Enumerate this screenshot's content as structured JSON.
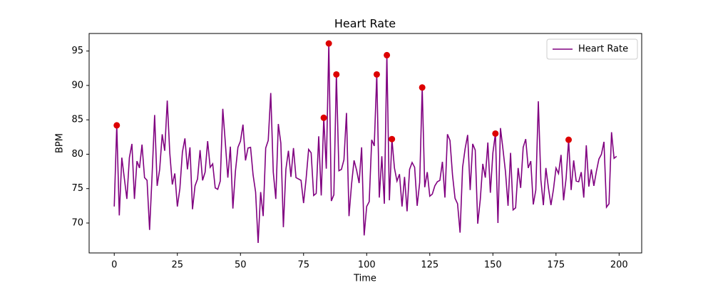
{
  "chart_data": {
    "type": "line",
    "title": "Heart Rate",
    "xlabel": "Time",
    "ylabel": "BPM",
    "x": [
      0,
      1,
      2,
      3,
      4,
      5,
      6,
      7,
      8,
      9,
      10,
      11,
      12,
      13,
      14,
      15,
      16,
      17,
      18,
      19,
      20,
      21,
      22,
      23,
      24,
      25,
      26,
      27,
      28,
      29,
      30,
      31,
      32,
      33,
      34,
      35,
      36,
      37,
      38,
      39,
      40,
      41,
      42,
      43,
      44,
      45,
      46,
      47,
      48,
      49,
      50,
      51,
      52,
      53,
      54,
      55,
      56,
      57,
      58,
      59,
      60,
      61,
      62,
      63,
      64,
      65,
      66,
      67,
      68,
      69,
      70,
      71,
      72,
      73,
      74,
      75,
      76,
      77,
      78,
      79,
      80,
      81,
      82,
      83,
      84,
      85,
      86,
      87,
      88,
      89,
      90,
      91,
      92,
      93,
      94,
      95,
      96,
      97,
      98,
      99,
      100,
      101,
      102,
      103,
      104,
      105,
      106,
      107,
      108,
      109,
      110,
      111,
      112,
      113,
      114,
      115,
      116,
      117,
      118,
      119,
      120,
      121,
      122,
      123,
      124,
      125,
      126,
      127,
      128,
      129,
      130,
      131,
      132,
      133,
      134,
      135,
      136,
      137,
      138,
      139,
      140,
      141,
      142,
      143,
      144,
      145,
      146,
      147,
      148,
      149,
      150,
      151,
      152,
      153,
      154,
      155,
      156,
      157,
      158,
      159,
      160,
      161,
      162,
      163,
      164,
      165,
      166,
      167,
      168,
      169,
      170,
      171,
      172,
      173,
      174,
      175,
      176,
      177,
      178,
      179,
      180,
      181,
      182,
      183,
      184,
      185,
      186,
      187,
      188,
      189,
      190,
      191,
      192,
      193,
      194,
      195,
      196,
      197,
      198,
      199
    ],
    "series": [
      {
        "name": "Heart Rate",
        "color": "#800080",
        "values": [
          72.4,
          84.2,
          71.1,
          79.5,
          76.5,
          73.5,
          79.5,
          81.5,
          73.5,
          79,
          78,
          81.4,
          76.6,
          76.2,
          69,
          77,
          85.7,
          75.4,
          77.8,
          82.9,
          80.5,
          87.8,
          80.2,
          75.6,
          77.2,
          72.4,
          75,
          80.3,
          82.3,
          77.8,
          81,
          72,
          75.4,
          76.4,
          80.6,
          76.2,
          77.4,
          81.9,
          78.1,
          78.6,
          75.1,
          74.9,
          76.1,
          86.6,
          81.7,
          76.6,
          81.1,
          72.1,
          77.5,
          81,
          81.9,
          84.3,
          79.1,
          80.9,
          81,
          77,
          74.5,
          67.1,
          74.5,
          71,
          80.9,
          82,
          88.9,
          77.4,
          73.5,
          84.4,
          81.6,
          69.4,
          77.8,
          80.5,
          76.7,
          80.9,
          76.6,
          76.4,
          76.2,
          72.9,
          76.4,
          80.7,
          80.2,
          74,
          74.3,
          82.6,
          74,
          85.3,
          77.9,
          96.1,
          73.2,
          74.1,
          91.6,
          77.6,
          77.8,
          79.2,
          86,
          71,
          75.6,
          79.1,
          77.7,
          75.8,
          81,
          68.2,
          72.4,
          73.1,
          82.1,
          81.2,
          91.6,
          73.7,
          79.7,
          72.8,
          94.4,
          73.3,
          82.2,
          78,
          76.1,
          77.1,
          72.4,
          76.7,
          71.7,
          77.8,
          78.8,
          78.1,
          72.5,
          75.9,
          89.7,
          75.2,
          77.4,
          73.9,
          74.2,
          75.4,
          76,
          76.2,
          78.9,
          73.7,
          82.9,
          82,
          77,
          73.6,
          72.8,
          68.6,
          78.1,
          80.8,
          82.8,
          74.8,
          81.5,
          80.6,
          69.9,
          73.4,
          78.6,
          76.6,
          81.7,
          74.4,
          80.2,
          83,
          70,
          83.8,
          80.7,
          77.4,
          72.5,
          80.2,
          71.9,
          72.2,
          78,
          75.1,
          81,
          82.2,
          78,
          79,
          72.7,
          74.8,
          87.7,
          76.3,
          72.6,
          78,
          75.1,
          72.6,
          74.9,
          78,
          77.2,
          79.9,
          73.3,
          76.5,
          82.1,
          74.8,
          79.1,
          76.1,
          76,
          77.4,
          73.7,
          81.3,
          75.3,
          77.8,
          75.4,
          77.5,
          79.3,
          80,
          81.8,
          72.3,
          72.8,
          83.2,
          79.4,
          79.7
        ]
      }
    ],
    "peaks": {
      "color": "#dd0000",
      "x": [
        1,
        83,
        85,
        88,
        104,
        108,
        110,
        122,
        151,
        180
      ],
      "values": [
        84.2,
        85.3,
        96.1,
        91.6,
        91.6,
        94.4,
        82.2,
        89.7,
        83,
        82.1
      ]
    },
    "xlim": [
      -9.95,
      208.95
    ],
    "xticks": [
      0,
      25,
      50,
      75,
      100,
      125,
      150,
      175,
      200
    ],
    "ylim": [
      65.65,
      97.55
    ],
    "yticks": [
      70,
      75,
      80,
      85,
      90,
      95
    ],
    "legend": "upper right"
  }
}
